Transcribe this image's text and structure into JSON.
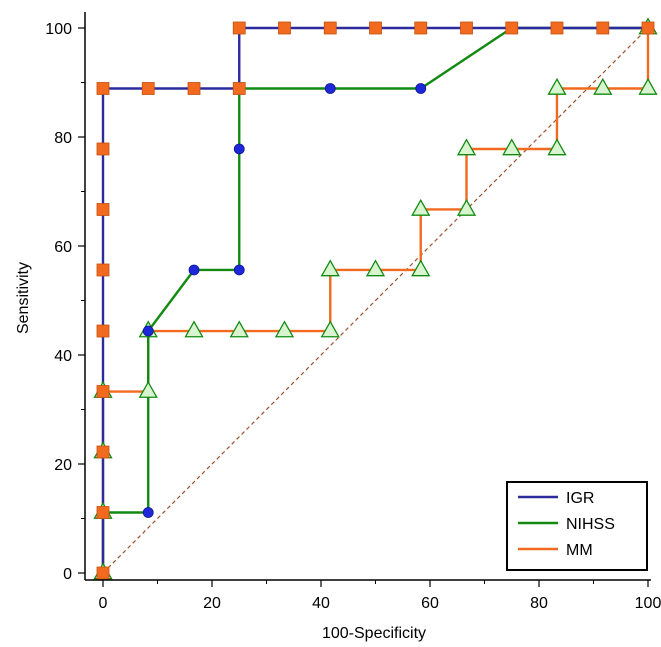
{
  "chart_data": {
    "type": "line",
    "title": "",
    "xlabel": "100-Specificity",
    "ylabel": "Sensitivity",
    "xlim": [
      0,
      100
    ],
    "ylim": [
      0,
      100
    ],
    "xticks": [
      "0",
      "20",
      "40",
      "60",
      "80",
      "100"
    ],
    "yticks": [
      "0",
      "20",
      "40",
      "60",
      "80",
      "100"
    ],
    "grid": false,
    "legend_position": "bottom-right",
    "reference_line": {
      "from": [
        0,
        0
      ],
      "to": [
        100,
        100
      ],
      "style": "dashed",
      "color": "#a0522d"
    },
    "series": [
      {
        "name": "IGR",
        "line_color": "#2b2b9e",
        "marker": "square",
        "marker_color": "#f26a1f",
        "points": [
          [
            0,
            0
          ],
          [
            0,
            11.1
          ],
          [
            0,
            22.2
          ],
          [
            0,
            33.3
          ],
          [
            0,
            44.4
          ],
          [
            0,
            55.6
          ],
          [
            0,
            66.7
          ],
          [
            0,
            77.8
          ],
          [
            0,
            88.9
          ],
          [
            8.3,
            88.9
          ],
          [
            16.7,
            88.9
          ],
          [
            25,
            88.9
          ],
          [
            25,
            100
          ],
          [
            33.3,
            100
          ],
          [
            41.7,
            100
          ],
          [
            50,
            100
          ],
          [
            58.3,
            100
          ],
          [
            66.7,
            100
          ],
          [
            75,
            100
          ],
          [
            83.3,
            100
          ],
          [
            91.7,
            100
          ],
          [
            100,
            100
          ]
        ]
      },
      {
        "name": "NIHSS",
        "line_color": "#128a12",
        "marker": "circle",
        "marker_color": "#1f28d8",
        "points": [
          [
            0,
            0
          ],
          [
            0,
            11.1
          ],
          [
            8.3,
            11.1
          ],
          [
            8.3,
            44.4
          ],
          [
            16.7,
            55.6
          ],
          [
            25,
            55.6
          ],
          [
            25,
            77.8
          ],
          [
            25,
            88.9
          ],
          [
            41.7,
            88.9
          ],
          [
            58.3,
            88.9
          ],
          [
            75,
            100
          ],
          [
            83.3,
            100
          ],
          [
            91.7,
            100
          ],
          [
            100,
            100
          ]
        ]
      },
      {
        "name": "MM",
        "line_color": "#f26a1f",
        "marker": "triangle",
        "marker_color": "#d9f5d0",
        "points": [
          [
            0,
            0
          ],
          [
            0,
            11.1
          ],
          [
            0,
            22.2
          ],
          [
            0,
            33.3
          ],
          [
            8.3,
            33.3
          ],
          [
            8.3,
            44.4
          ],
          [
            16.7,
            44.4
          ],
          [
            25,
            44.4
          ],
          [
            33.3,
            44.4
          ],
          [
            41.7,
            44.4
          ],
          [
            41.7,
            55.6
          ],
          [
            50,
            55.6
          ],
          [
            58.3,
            55.6
          ],
          [
            58.3,
            66.7
          ],
          [
            66.7,
            66.7
          ],
          [
            66.7,
            77.8
          ],
          [
            75,
            77.8
          ],
          [
            83.3,
            77.8
          ],
          [
            83.3,
            88.9
          ],
          [
            91.7,
            88.9
          ],
          [
            100,
            88.9
          ],
          [
            100,
            100
          ]
        ]
      }
    ]
  }
}
